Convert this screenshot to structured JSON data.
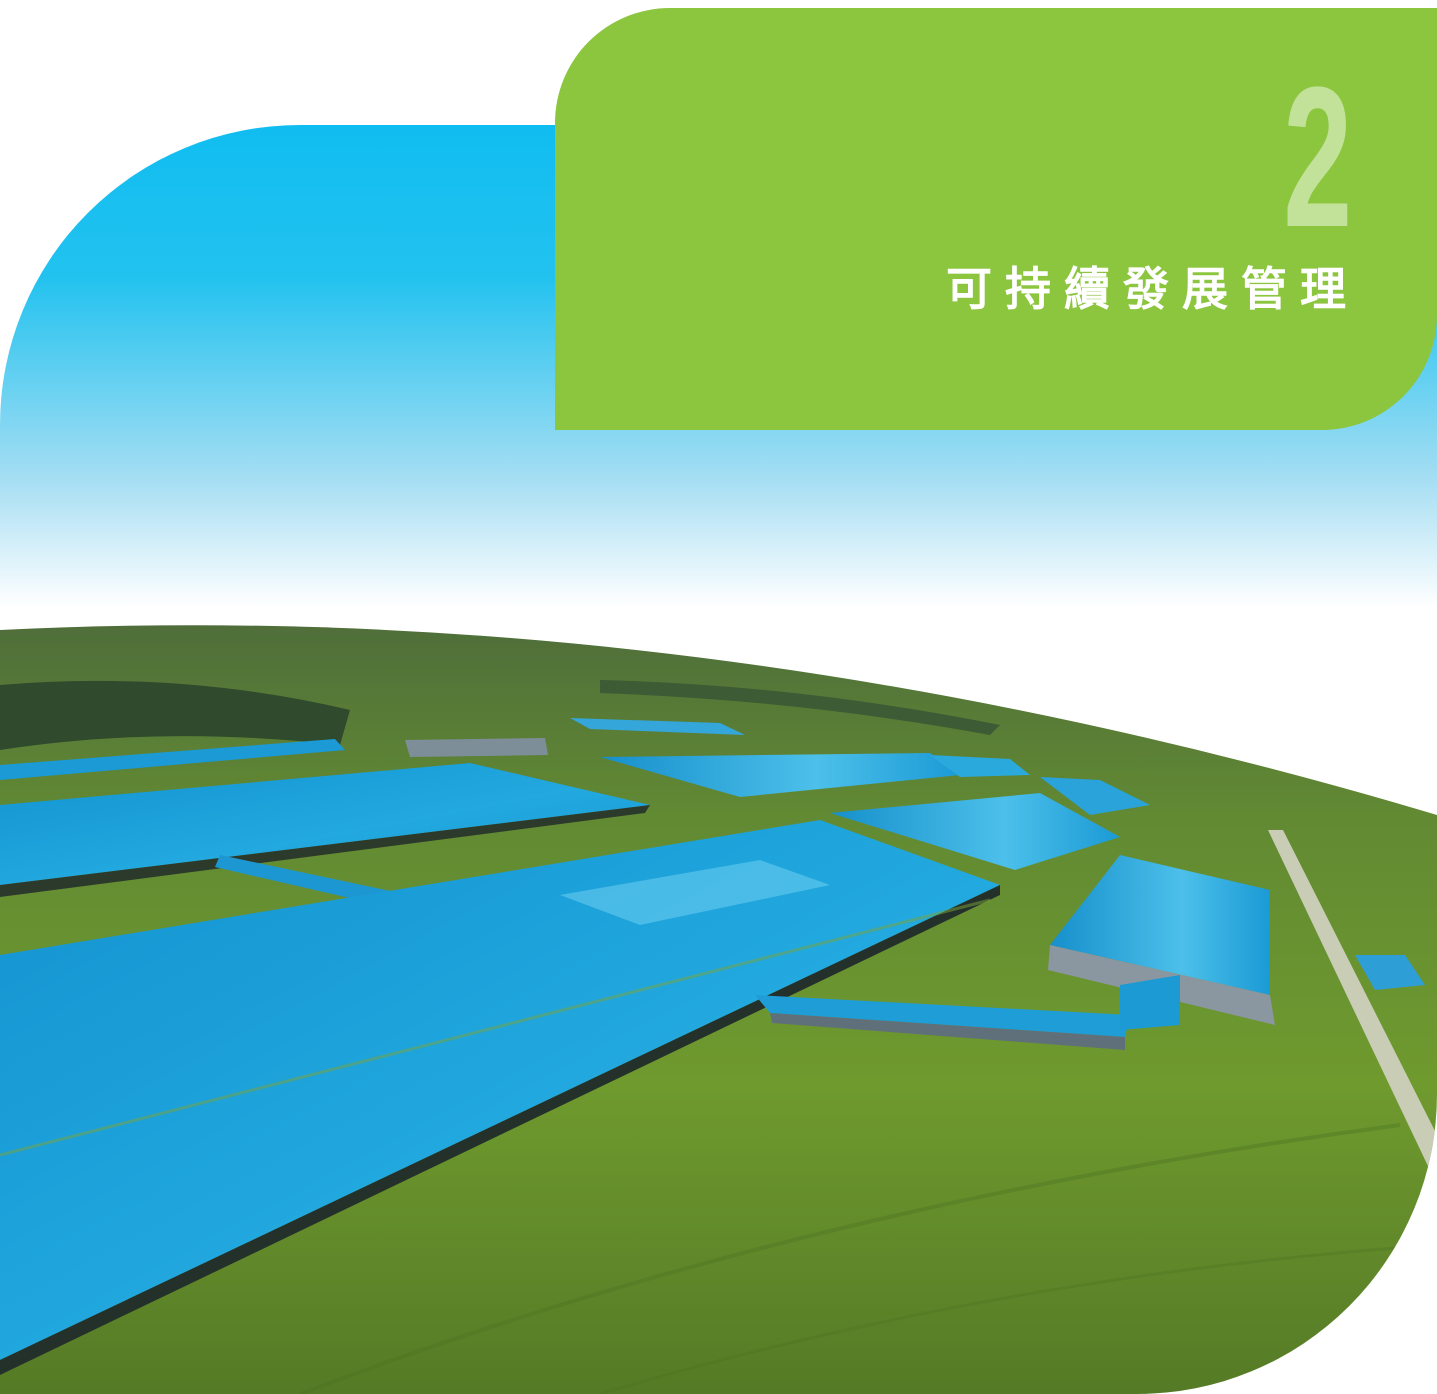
{
  "chapter": {
    "number": "2",
    "title": "可持續發展管理"
  },
  "colors": {
    "panel": "#8cc63f",
    "number": "#c2e29a",
    "title": "#ffffff",
    "sky": "#12bff0",
    "roof": "#1aa3d8",
    "field": "#5f8a2a"
  },
  "photo": {
    "subject": "aerial-farm-view"
  }
}
